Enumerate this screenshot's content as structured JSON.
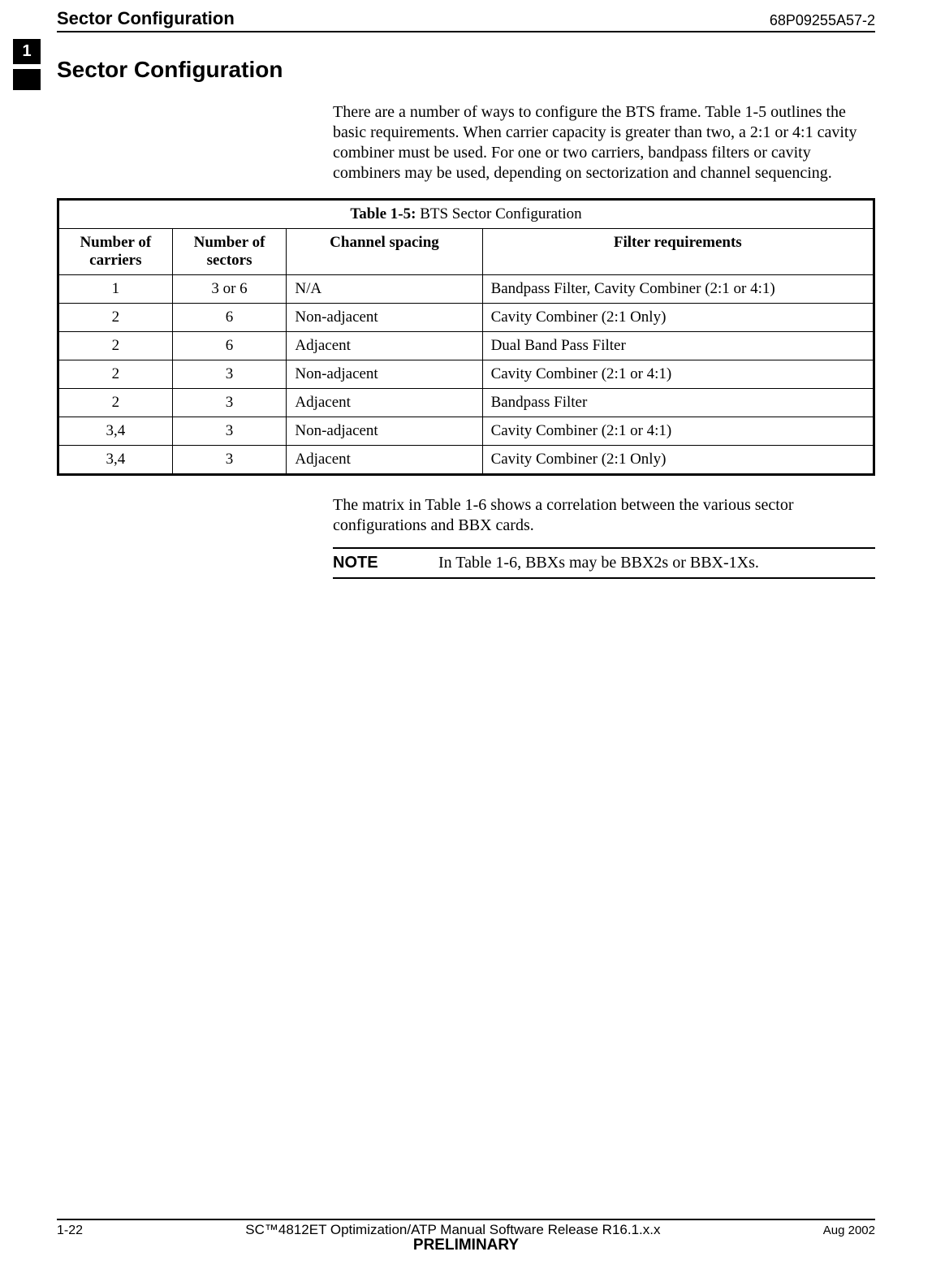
{
  "header": {
    "left": "Sector Configuration",
    "right": "68P09255A57-2"
  },
  "side_tab": {
    "number": "1"
  },
  "section_title": "Sector Configuration",
  "intro_paragraph": "There are a number of ways to configure the BTS frame. Table 1-5 outlines the basic requirements. When carrier capacity is greater than two, a 2:1 or 4:1 cavity combiner must be used. For one or two carriers, bandpass filters or cavity combiners may be used, depending on sectorization and channel sequencing.",
  "table": {
    "caption_bold": "Table 1-5:",
    "caption_rest": " BTS Sector Configuration",
    "columns": [
      {
        "label": "Number of carriers"
      },
      {
        "label": "Number of sectors"
      },
      {
        "label": "Channel spacing"
      },
      {
        "label": "Filter requirements"
      }
    ],
    "rows": [
      {
        "c0": "1",
        "c1": "3 or 6",
        "c2": "N/A",
        "c3": "Bandpass Filter, Cavity Combiner (2:1 or 4:1)"
      },
      {
        "c0": "2",
        "c1": "6",
        "c2": "Non-adjacent",
        "c3": "Cavity Combiner (2:1 Only)"
      },
      {
        "c0": "2",
        "c1": "6",
        "c2": "Adjacent",
        "c3": "Dual Band Pass Filter"
      },
      {
        "c0": "2",
        "c1": "3",
        "c2": "Non-adjacent",
        "c3": "Cavity Combiner (2:1 or 4:1)"
      },
      {
        "c0": "2",
        "c1": "3",
        "c2": "Adjacent",
        "c3": "Bandpass Filter"
      },
      {
        "c0": "3,4",
        "c1": "3",
        "c2": "Non-adjacent",
        "c3": "Cavity Combiner (2:1 or 4:1)"
      },
      {
        "c0": "3,4",
        "c1": "3",
        "c2": "Adjacent",
        "c3": "Cavity Combiner (2:1 Only)"
      }
    ]
  },
  "post_paragraph": "The matrix in Table 1-6 shows a correlation between the various sector configurations and BBX cards.",
  "note": {
    "label": "NOTE",
    "text": "In Table 1-6, BBXs may be BBX2s or BBX-1Xs."
  },
  "footer": {
    "page": "1-22",
    "center": "SC™4812ET Optimization/ATP Manual Software Release R16.1.x.x",
    "date": "Aug 2002",
    "preliminary": "PRELIMINARY"
  }
}
